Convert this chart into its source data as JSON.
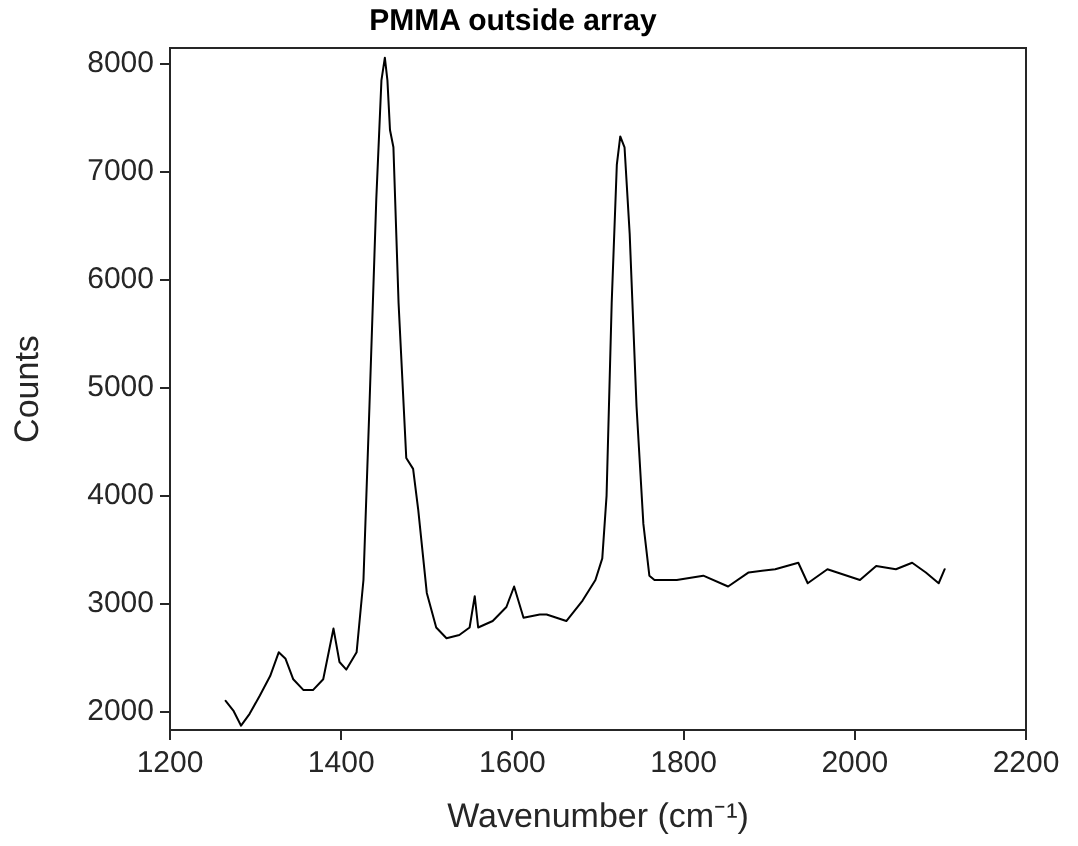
{
  "chart_data": {
    "type": "line",
    "title": "PMMA outside array",
    "xlabel": "Wavenumber (cm⁻¹)",
    "ylabel": "Counts",
    "xlim": [
      1200,
      2200
    ],
    "xticks": [
      1200,
      1400,
      1600,
      1800,
      2000,
      2200
    ],
    "ylim": [
      1830,
      8150
    ],
    "yticks": [
      2000,
      3000,
      4000,
      5000,
      6000,
      7000,
      8000
    ],
    "grid": false,
    "marker": "none",
    "line_style": "solid",
    "series": [
      {
        "color": "#000000",
        "x": [
          1265,
          1274,
          1283,
          1293,
          1305,
          1317,
          1327,
          1335,
          1344,
          1356,
          1367,
          1379,
          1391,
          1398,
          1406,
          1418,
          1426,
          1433,
          1441,
          1447,
          1451,
          1454,
          1457,
          1461,
          1467,
          1476,
          1484,
          1490,
          1500,
          1511,
          1523,
          1538,
          1550,
          1556,
          1560,
          1577,
          1593,
          1602,
          1613,
          1632,
          1640,
          1663,
          1682,
          1697,
          1705,
          1710,
          1716,
          1722,
          1726,
          1731,
          1737,
          1745,
          1753,
          1760,
          1766,
          1792,
          1823,
          1852,
          1876,
          1907,
          1934,
          1945,
          1968,
          2006,
          2025,
          2048,
          2067,
          2083,
          2098,
          2105
        ],
        "values": [
          2100,
          2010,
          1870,
          1980,
          2150,
          2330,
          2550,
          2490,
          2300,
          2200,
          2200,
          2300,
          2770,
          2460,
          2390,
          2550,
          3220,
          4830,
          6750,
          7850,
          8060,
          7850,
          7390,
          7230,
          5790,
          4350,
          4250,
          3870,
          3100,
          2780,
          2680,
          2710,
          2780,
          3070,
          2780,
          2840,
          2970,
          3160,
          2870,
          2900,
          2900,
          2840,
          3030,
          3220,
          3420,
          4000,
          5790,
          7070,
          7330,
          7230,
          6430,
          4830,
          3740,
          3260,
          3220,
          3220,
          3260,
          3160,
          3290,
          3320,
          3380,
          3190,
          3320,
          3220,
          3350,
          3320,
          3380,
          3290,
          3190,
          3320
        ]
      }
    ]
  }
}
